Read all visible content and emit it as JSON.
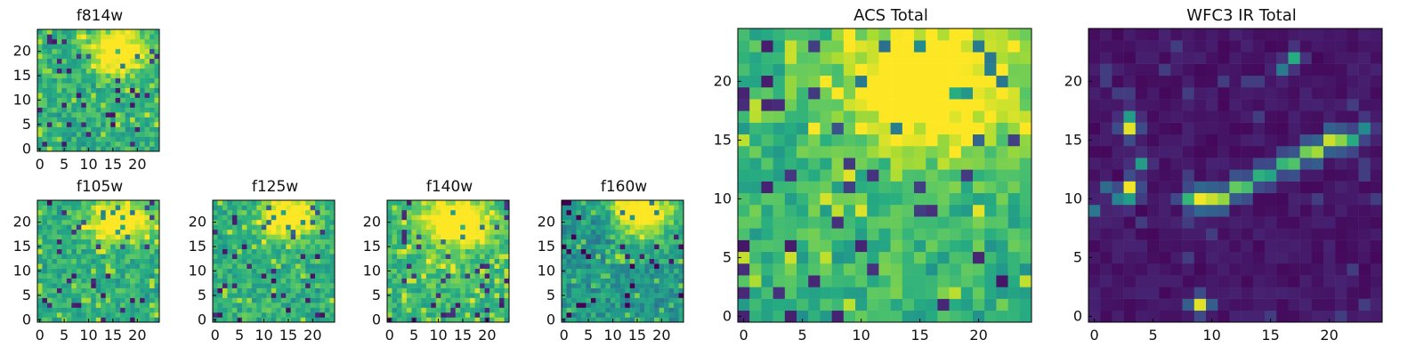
{
  "chart_data": [
    {
      "type": "heatmap",
      "title": "f814w",
      "rows": 25,
      "cols": 25,
      "x_ticks": [
        0,
        5,
        10,
        15,
        20
      ],
      "y_ticks": [
        0,
        5,
        10,
        15,
        20
      ],
      "colormap": "viridis",
      "pattern": "bright upper-middle patch near x=16, y=20 with noisy background"
    },
    {
      "type": "heatmap",
      "title": "f105w",
      "rows": 25,
      "cols": 25,
      "x_ticks": [
        0,
        5,
        10,
        15,
        20
      ],
      "y_ticks": [
        0,
        5,
        10,
        15,
        20
      ],
      "colormap": "viridis",
      "pattern": "bright upper-middle patch near x=16, y=20 with speckled lower region"
    },
    {
      "type": "heatmap",
      "title": "f125w",
      "rows": 25,
      "cols": 25,
      "x_ticks": [
        0,
        5,
        10,
        15,
        20
      ],
      "y_ticks": [
        0,
        5,
        10,
        15,
        20
      ],
      "colormap": "viridis",
      "pattern": "bright upper-middle patch near x=15, y=21"
    },
    {
      "type": "heatmap",
      "title": "f140w",
      "rows": 25,
      "cols": 25,
      "x_ticks": [
        0,
        5,
        10,
        15,
        20
      ],
      "y_ticks": [
        0,
        5,
        10,
        15,
        20
      ],
      "colormap": "viridis",
      "pattern": "bright upper-middle patch near x=14, y=20 with a broad bright center"
    },
    {
      "type": "heatmap",
      "title": "f160w",
      "rows": 25,
      "cols": 25,
      "x_ticks": [
        0,
        5,
        10,
        15,
        20
      ],
      "y_ticks": [
        0,
        5,
        10,
        15,
        20
      ],
      "colormap": "viridis",
      "pattern": "bright upper-right patch near x=16, y=22 with darker lower-left area"
    },
    {
      "type": "heatmap",
      "title": "ACS Total",
      "rows": 25,
      "cols": 25,
      "x_ticks": [
        0,
        5,
        10,
        15,
        20
      ],
      "y_ticks": [
        0,
        5,
        10,
        15,
        20
      ],
      "colormap": "viridis",
      "pattern": "large bright upper-middle region near x=16, y=20, remaining cells mostly green-teal with scattered dark cells"
    },
    {
      "type": "heatmap",
      "title": "WFC3 IR Total",
      "rows": 25,
      "cols": 25,
      "x_ticks": [
        0,
        5,
        10,
        15,
        20
      ],
      "y_ticks": [
        0,
        5,
        10,
        15,
        20
      ],
      "colormap": "viridis",
      "pattern": "mostly dark purple background with sparse bright cells forming a diagonal streak from about x=8, y=10 to x=23, y=16, plus isolated bright spots near x=3, y=16, x=3, y=11, x=17, y=22, and x=9, y=1"
    }
  ]
}
